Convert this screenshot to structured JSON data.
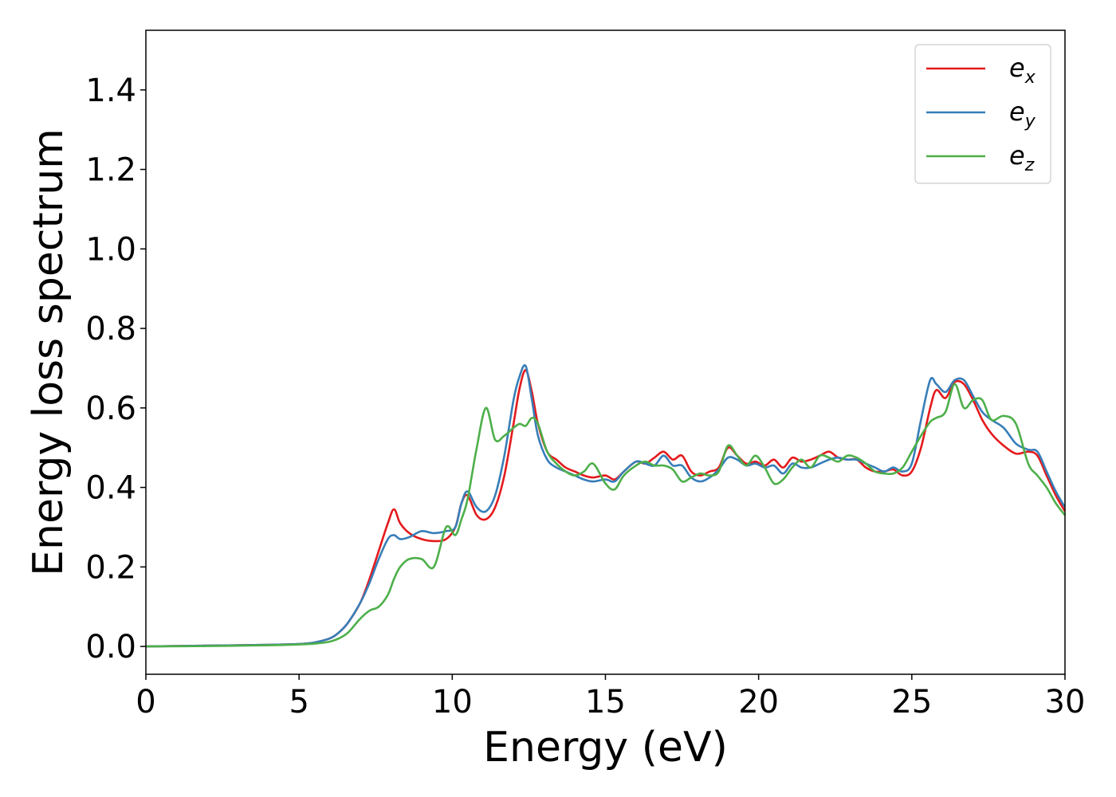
{
  "chart_data": {
    "type": "line",
    "xlabel": "Energy (eV)",
    "ylabel": "Energy loss spectrum",
    "xlim": [
      0,
      30
    ],
    "ylim": [
      -0.07,
      1.55
    ],
    "xticks": [
      0,
      5,
      10,
      15,
      20,
      25,
      30
    ],
    "xtick_labels": [
      "0",
      "5",
      "10",
      "15",
      "20",
      "25",
      "30"
    ],
    "yticks": [
      0.0,
      0.2,
      0.4,
      0.6,
      0.8,
      1.0,
      1.2,
      1.4
    ],
    "ytick_labels": [
      "0.0",
      "0.2",
      "0.4",
      "0.6",
      "0.8",
      "1.0",
      "1.2",
      "1.4"
    ],
    "grid": false,
    "legend_position": "top-right",
    "series": [
      {
        "name": "e",
        "subscript": "x",
        "color": "#e41a1c",
        "x": [
          0,
          2,
          4,
          5,
          5.5,
          6,
          6.3,
          6.6,
          7,
          7.3,
          7.6,
          7.9,
          8.1,
          8.3,
          8.6,
          9,
          9.4,
          9.8,
          10.1,
          10.3,
          10.5,
          10.8,
          11.1,
          11.4,
          11.7,
          12,
          12.2,
          12.4,
          12.6,
          12.8,
          13.1,
          13.4,
          13.7,
          14,
          14.3,
          14.6,
          15,
          15.3,
          15.6,
          16,
          16.3,
          16.6,
          16.9,
          17.2,
          17.5,
          17.8,
          18.1,
          18.4,
          18.7,
          19,
          19.3,
          19.6,
          19.9,
          20.2,
          20.5,
          20.8,
          21.1,
          21.4,
          21.7,
          22,
          22.3,
          22.6,
          22.9,
          23.2,
          23.5,
          23.8,
          24.1,
          24.4,
          24.7,
          25,
          25.3,
          25.6,
          25.8,
          26.1,
          26.4,
          26.7,
          27,
          27.3,
          27.6,
          28,
          28.4,
          28.8,
          29.1,
          29.4,
          29.7,
          30
        ],
        "y": [
          0.0,
          0.002,
          0.004,
          0.006,
          0.01,
          0.02,
          0.035,
          0.06,
          0.11,
          0.17,
          0.24,
          0.31,
          0.345,
          0.31,
          0.285,
          0.27,
          0.265,
          0.27,
          0.3,
          0.36,
          0.38,
          0.33,
          0.32,
          0.35,
          0.43,
          0.56,
          0.65,
          0.695,
          0.64,
          0.56,
          0.49,
          0.47,
          0.45,
          0.44,
          0.43,
          0.425,
          0.43,
          0.42,
          0.44,
          0.465,
          0.46,
          0.475,
          0.49,
          0.47,
          0.48,
          0.44,
          0.43,
          0.44,
          0.45,
          0.5,
          0.48,
          0.46,
          0.465,
          0.455,
          0.47,
          0.45,
          0.475,
          0.465,
          0.47,
          0.48,
          0.49,
          0.475,
          0.47,
          0.47,
          0.45,
          0.44,
          0.44,
          0.445,
          0.43,
          0.44,
          0.5,
          0.6,
          0.645,
          0.625,
          0.665,
          0.66,
          0.62,
          0.57,
          0.535,
          0.505,
          0.485,
          0.49,
          0.48,
          0.43,
          0.38,
          0.34
        ]
      },
      {
        "name": "e",
        "subscript": "y",
        "color": "#377eb8",
        "x": [
          0,
          2,
          4,
          5,
          5.5,
          6,
          6.3,
          6.6,
          7,
          7.3,
          7.6,
          7.9,
          8.1,
          8.3,
          8.6,
          9,
          9.4,
          9.8,
          10.1,
          10.3,
          10.5,
          10.8,
          11.1,
          11.4,
          11.7,
          12,
          12.2,
          12.4,
          12.6,
          12.8,
          13.1,
          13.4,
          13.7,
          14,
          14.3,
          14.6,
          15,
          15.3,
          15.6,
          16,
          16.3,
          16.6,
          16.9,
          17.2,
          17.5,
          17.8,
          18.1,
          18.4,
          18.7,
          19,
          19.3,
          19.6,
          19.9,
          20.2,
          20.5,
          20.8,
          21.1,
          21.4,
          21.7,
          22,
          22.3,
          22.6,
          22.9,
          23.2,
          23.5,
          23.8,
          24.1,
          24.4,
          24.7,
          25,
          25.3,
          25.6,
          25.8,
          26.1,
          26.4,
          26.7,
          27,
          27.3,
          27.6,
          28,
          28.4,
          28.8,
          29.1,
          29.4,
          29.7,
          30
        ],
        "y": [
          0.0,
          0.002,
          0.004,
          0.006,
          0.01,
          0.02,
          0.035,
          0.06,
          0.11,
          0.16,
          0.22,
          0.27,
          0.28,
          0.27,
          0.275,
          0.29,
          0.285,
          0.29,
          0.3,
          0.36,
          0.39,
          0.35,
          0.34,
          0.38,
          0.48,
          0.62,
          0.68,
          0.705,
          0.62,
          0.53,
          0.47,
          0.45,
          0.44,
          0.43,
          0.42,
          0.415,
          0.42,
          0.415,
          0.44,
          0.465,
          0.46,
          0.455,
          0.48,
          0.455,
          0.455,
          0.425,
          0.415,
          0.425,
          0.445,
          0.475,
          0.47,
          0.455,
          0.46,
          0.45,
          0.455,
          0.435,
          0.46,
          0.45,
          0.45,
          0.46,
          0.47,
          0.475,
          0.47,
          0.47,
          0.46,
          0.45,
          0.44,
          0.45,
          0.44,
          0.46,
          0.57,
          0.67,
          0.66,
          0.64,
          0.67,
          0.67,
          0.63,
          0.59,
          0.57,
          0.55,
          0.51,
          0.495,
          0.49,
          0.44,
          0.39,
          0.35
        ]
      },
      {
        "name": "e",
        "subscript": "z",
        "color": "#4daf4a",
        "x": [
          0,
          2,
          4,
          5,
          5.5,
          6,
          6.3,
          6.6,
          7,
          7.3,
          7.6,
          7.9,
          8.1,
          8.3,
          8.6,
          9,
          9.4,
          9.8,
          10.1,
          10.3,
          10.5,
          10.8,
          11.1,
          11.4,
          11.7,
          12,
          12.2,
          12.4,
          12.6,
          12.8,
          13.1,
          13.4,
          13.7,
          14,
          14.3,
          14.6,
          15,
          15.3,
          15.6,
          16,
          16.3,
          16.6,
          16.9,
          17.2,
          17.5,
          17.8,
          18.1,
          18.4,
          18.7,
          19,
          19.3,
          19.6,
          19.9,
          20.2,
          20.5,
          20.8,
          21.1,
          21.4,
          21.7,
          22,
          22.3,
          22.6,
          22.9,
          23.2,
          23.5,
          23.8,
          24.1,
          24.4,
          24.7,
          25,
          25.3,
          25.6,
          25.8,
          26.1,
          26.4,
          26.7,
          27,
          27.3,
          27.6,
          28,
          28.4,
          28.8,
          29.1,
          29.4,
          29.7,
          30
        ],
        "y": [
          0.0,
          0.001,
          0.003,
          0.005,
          0.007,
          0.012,
          0.02,
          0.035,
          0.07,
          0.09,
          0.1,
          0.13,
          0.17,
          0.2,
          0.22,
          0.22,
          0.2,
          0.3,
          0.28,
          0.32,
          0.37,
          0.5,
          0.6,
          0.52,
          0.53,
          0.55,
          0.56,
          0.555,
          0.575,
          0.56,
          0.49,
          0.46,
          0.44,
          0.43,
          0.44,
          0.46,
          0.41,
          0.395,
          0.43,
          0.455,
          0.465,
          0.455,
          0.455,
          0.445,
          0.415,
          0.425,
          0.435,
          0.43,
          0.44,
          0.505,
          0.48,
          0.455,
          0.48,
          0.45,
          0.41,
          0.42,
          0.45,
          0.47,
          0.45,
          0.48,
          0.475,
          0.465,
          0.48,
          0.475,
          0.46,
          0.44,
          0.435,
          0.435,
          0.45,
          0.49,
          0.53,
          0.565,
          0.575,
          0.59,
          0.66,
          0.6,
          0.62,
          0.62,
          0.57,
          0.58,
          0.56,
          0.46,
          0.43,
          0.4,
          0.36,
          0.33
        ]
      }
    ]
  }
}
